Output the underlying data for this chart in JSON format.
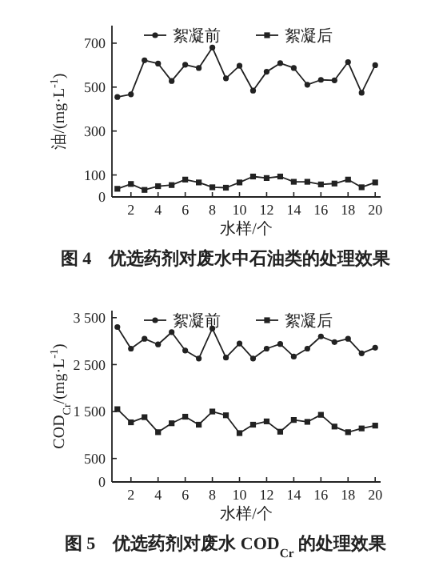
{
  "chart_data": [
    {
      "type": "line",
      "title": "图 4　优选药剂对废水中石油类的处理效果",
      "xlabel": "水样/个",
      "ylabel": "油/(mg·L$^{-1}$)",
      "x": [
        1,
        2,
        3,
        4,
        5,
        6,
        7,
        8,
        9,
        10,
        11,
        12,
        13,
        14,
        15,
        16,
        17,
        18,
        19,
        20
      ],
      "xlim": [
        0.6,
        20.4
      ],
      "xticks": [
        2,
        4,
        6,
        8,
        10,
        12,
        14,
        16,
        18,
        20
      ],
      "ylim": [
        0,
        780
      ],
      "yticks": [
        0,
        100,
        300,
        500,
        700
      ],
      "legend": "top",
      "grid": false,
      "line_style": "solid",
      "series": [
        {
          "name": "絮凝前",
          "color": "#222222",
          "marker": "circle",
          "values": [
            455,
            467,
            622,
            607,
            528,
            602,
            587,
            680,
            540,
            597,
            484,
            570,
            609,
            587,
            511,
            533,
            531,
            614,
            474,
            600
          ]
        },
        {
          "name": "絮凝后",
          "color": "#222222",
          "marker": "square",
          "values": [
            37,
            59,
            32,
            49,
            54,
            79,
            66,
            44,
            42,
            66,
            93,
            86,
            93,
            69,
            69,
            57,
            61,
            79,
            44,
            66
          ]
        }
      ]
    },
    {
      "type": "line",
      "title": "图 5　优选药剂对废水 COD$_{Cr}$ 的处理效果",
      "xlabel": "水样/个",
      "ylabel": "COD$_{Cr}$/(mg·L$^{-1}$)",
      "x": [
        1,
        2,
        3,
        4,
        5,
        6,
        7,
        8,
        9,
        10,
        11,
        12,
        13,
        14,
        15,
        16,
        17,
        18,
        19,
        20
      ],
      "xlim": [
        0.6,
        20.4
      ],
      "xticks": [
        2,
        4,
        6,
        8,
        10,
        12,
        14,
        16,
        18,
        20
      ],
      "ylim": [
        0,
        3650
      ],
      "yticks": [
        0,
        500,
        {
          "value": 1500,
          "label": "1 500"
        },
        {
          "value": 2500,
          "label": "2 500"
        },
        {
          "value": 3500,
          "label": "3 500"
        }
      ],
      "legend": "top",
      "grid": false,
      "line_style": "solid",
      "series": [
        {
          "name": "絮凝前",
          "color": "#222222",
          "marker": "circle",
          "values": [
            3300,
            2840,
            3050,
            2930,
            3190,
            2800,
            2630,
            3270,
            2650,
            2950,
            2630,
            2840,
            2940,
            2670,
            2840,
            3100,
            2980,
            3050,
            2740,
            2860
          ]
        },
        {
          "name": "絮凝后",
          "color": "#222222",
          "marker": "square",
          "values": [
            1550,
            1270,
            1380,
            1060,
            1250,
            1390,
            1220,
            1500,
            1420,
            1040,
            1220,
            1290,
            1070,
            1320,
            1280,
            1430,
            1180,
            1060,
            1140,
            1200
          ]
        }
      ]
    }
  ]
}
